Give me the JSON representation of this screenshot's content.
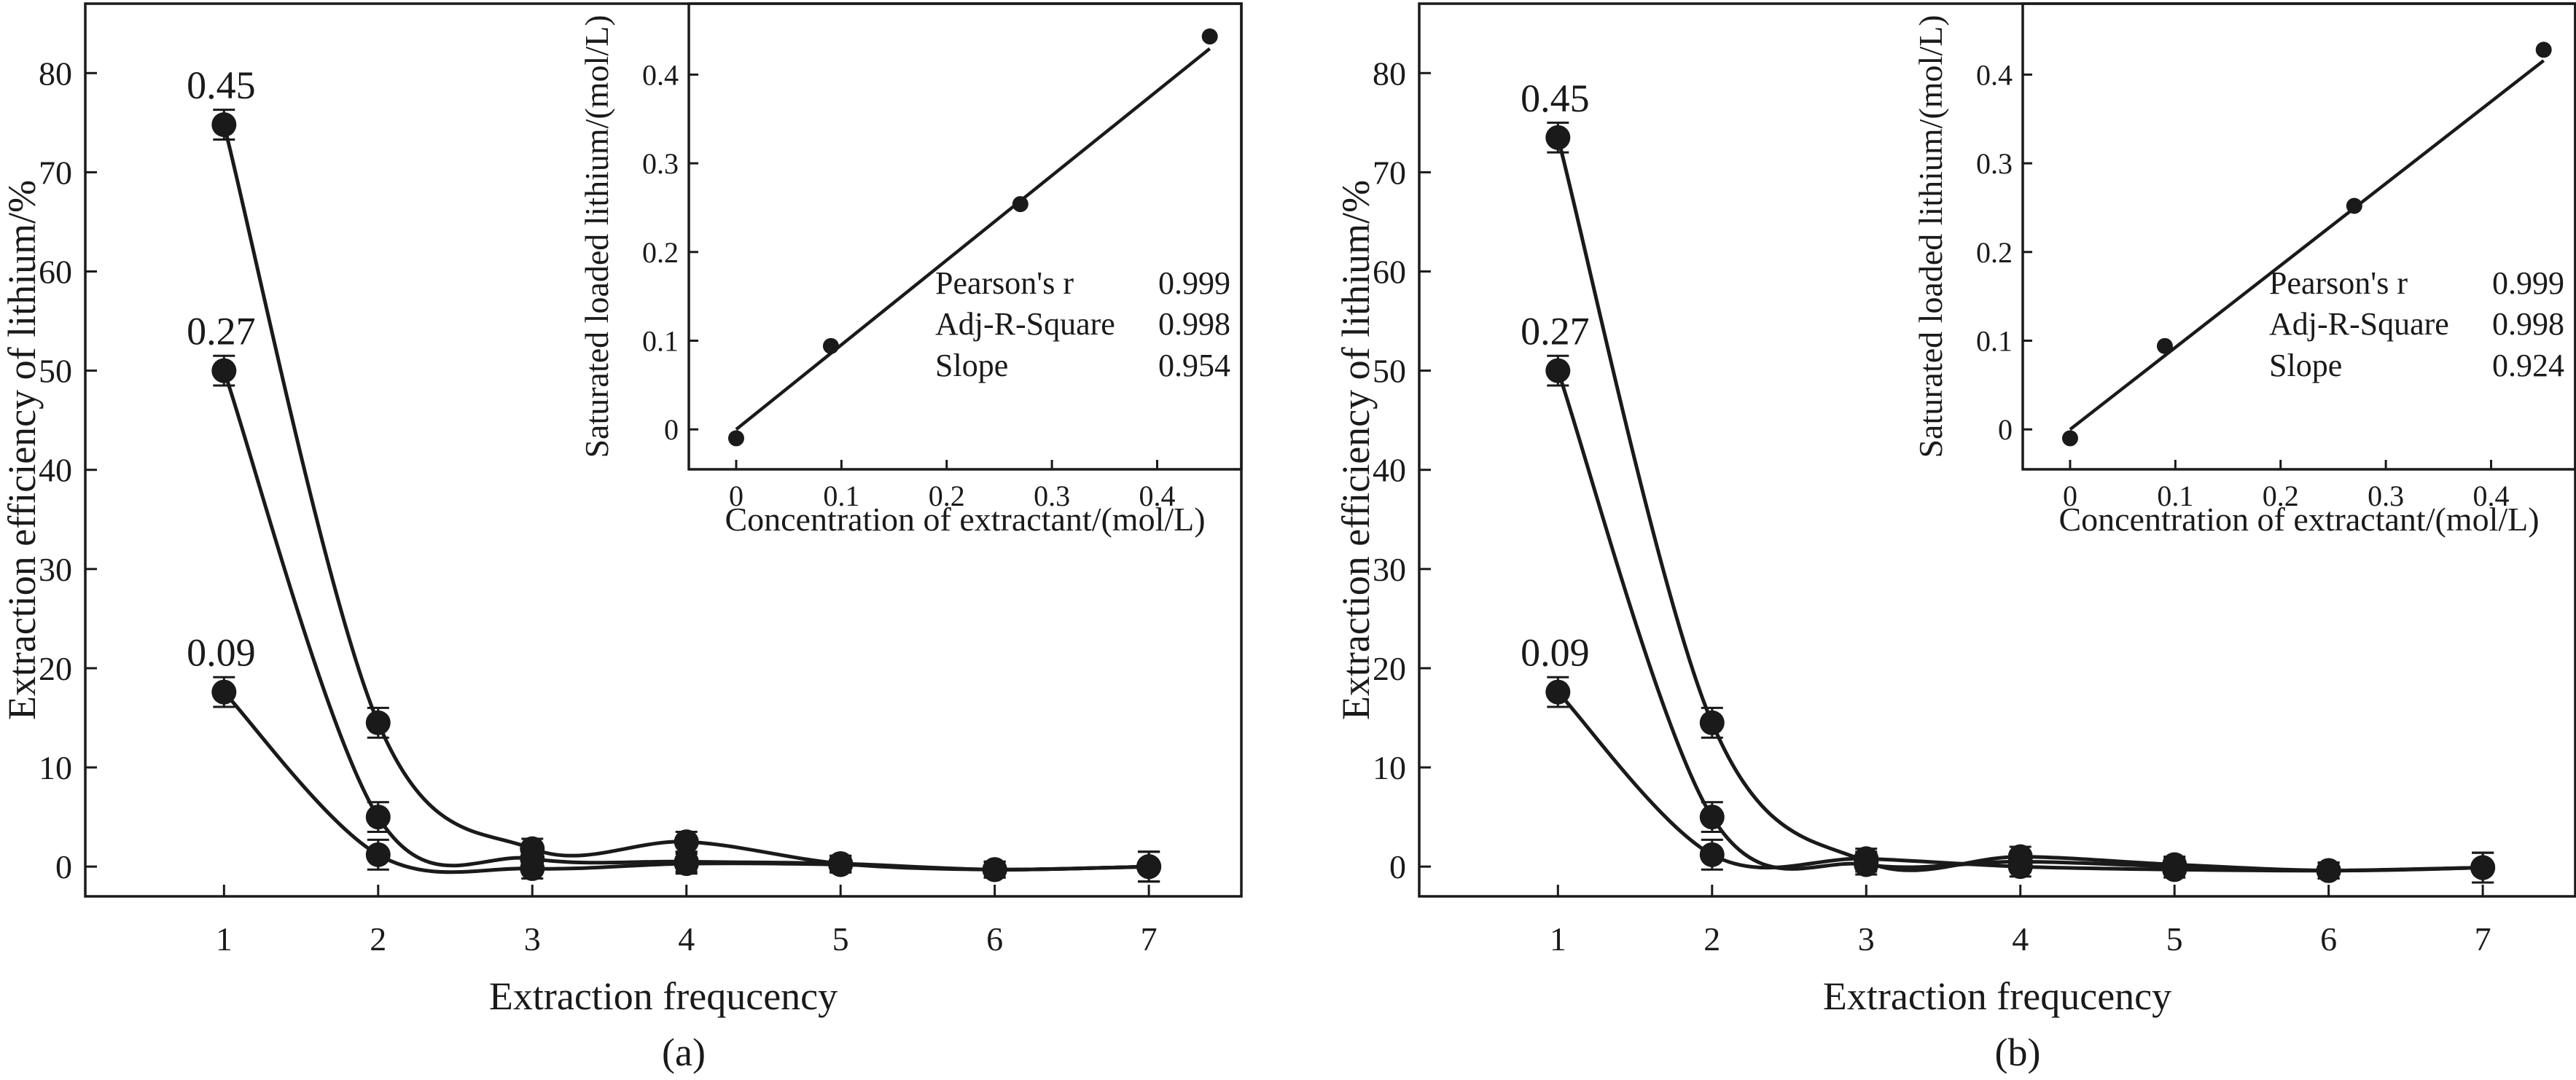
{
  "chart_data": [
    {
      "type": "line",
      "panel_label": "(a)",
      "xlabel": "Extraction frequcency",
      "ylabel": "Extraction efficiency of lithium/%",
      "xlim": [
        0.1,
        7.6
      ],
      "ylim": [
        -3,
        87
      ],
      "xticks": [
        1,
        2,
        3,
        4,
        5,
        6,
        7
      ],
      "yticks": [
        0,
        10,
        20,
        30,
        40,
        50,
        60,
        70,
        80
      ],
      "series": [
        {
          "name": "0.45",
          "x": [
            1,
            2,
            3,
            4,
            5,
            6,
            7
          ],
          "values": [
            74.8,
            14.5,
            1.8,
            2.5,
            0.3,
            -0.3,
            0.0
          ],
          "errors": [
            1.5,
            1.5,
            1.0,
            1.0,
            0.8,
            0.8,
            1.5
          ]
        },
        {
          "name": "0.27",
          "x": [
            1,
            2,
            3,
            4,
            5,
            6,
            7
          ],
          "values": [
            50.0,
            5.0,
            0.8,
            0.5,
            0.3,
            -0.3,
            0.0
          ],
          "errors": [
            1.5,
            1.5,
            1.0,
            1.0,
            0.8,
            0.8,
            1.5
          ]
        },
        {
          "name": "0.09",
          "x": [
            1,
            2,
            3,
            4,
            5,
            6,
            7
          ],
          "values": [
            17.6,
            1.2,
            -0.2,
            0.3,
            0.2,
            -0.3,
            0.0
          ],
          "errors": [
            1.5,
            1.5,
            1.0,
            1.0,
            0.8,
            0.8,
            1.5
          ]
        }
      ],
      "inset": {
        "type": "scatter",
        "xlabel": "Concentration of extractant/(mol/L)",
        "ylabel": "Saturated loaded lithium/(mol/L)",
        "xlim": [
          -0.045,
          0.48
        ],
        "ylim": [
          -0.045,
          0.48
        ],
        "xticks": [
          0,
          0.1,
          0.2,
          0.3,
          0.4
        ],
        "yticks": [
          0,
          0.1,
          0.2,
          0.3,
          0.4
        ],
        "x": [
          0,
          0.09,
          0.27,
          0.45
        ],
        "values": [
          -0.01,
          0.094,
          0.254,
          0.443
        ],
        "fit": {
          "intercept": 0.0,
          "slope": 0.954,
          "x_range": [
            0,
            0.45
          ]
        },
        "stats": [
          {
            "label": "Pearson's r",
            "value": "0.999"
          },
          {
            "label": "Adj-R-Square",
            "value": "0.998"
          },
          {
            "label": "Slope",
            "value": "0.954"
          }
        ]
      }
    },
    {
      "type": "line",
      "panel_label": "(b)",
      "xlabel": "Extraction frequcency",
      "ylabel": "Extraction efficiency of lithium/%",
      "xlim": [
        0.1,
        7.6
      ],
      "ylim": [
        -3,
        87
      ],
      "xticks": [
        1,
        2,
        3,
        4,
        5,
        6,
        7
      ],
      "yticks": [
        0,
        10,
        20,
        30,
        40,
        50,
        60,
        70,
        80
      ],
      "series": [
        {
          "name": "0.45",
          "x": [
            1,
            2,
            3,
            4,
            5,
            6,
            7
          ],
          "values": [
            73.5,
            14.5,
            0.5,
            1.0,
            0.2,
            -0.4,
            -0.1
          ],
          "errors": [
            1.5,
            1.5,
            1.0,
            1.0,
            0.8,
            0.8,
            1.5
          ]
        },
        {
          "name": "0.27",
          "x": [
            1,
            2,
            3,
            4,
            5,
            6,
            7
          ],
          "values": [
            50.0,
            5.0,
            0.2,
            0.5,
            0.0,
            -0.4,
            -0.1
          ],
          "errors": [
            1.5,
            1.5,
            1.0,
            1.0,
            0.8,
            0.8,
            1.5
          ]
        },
        {
          "name": "0.09",
          "x": [
            1,
            2,
            3,
            4,
            5,
            6,
            7
          ],
          "values": [
            17.6,
            1.2,
            0.8,
            0.0,
            -0.3,
            -0.4,
            -0.1
          ],
          "errors": [
            1.5,
            1.5,
            1.0,
            1.0,
            0.8,
            0.8,
            1.5
          ]
        }
      ],
      "inset": {
        "type": "scatter",
        "xlabel": "Concentration of extractant/(mol/L)",
        "ylabel": "Saturated loaded lithium/(mol/L)",
        "xlim": [
          -0.045,
          0.48
        ],
        "ylim": [
          -0.045,
          0.48
        ],
        "xticks": [
          0,
          0.1,
          0.2,
          0.3,
          0.4
        ],
        "yticks": [
          0,
          0.1,
          0.2,
          0.3,
          0.4
        ],
        "x": [
          0,
          0.09,
          0.27,
          0.45
        ],
        "values": [
          -0.01,
          0.094,
          0.252,
          0.428
        ],
        "fit": {
          "intercept": 0.0,
          "slope": 0.924,
          "x_range": [
            0,
            0.45
          ]
        },
        "stats": [
          {
            "label": "Pearson's r",
            "value": "0.999"
          },
          {
            "label": "Adj-R-Square",
            "value": "0.998"
          },
          {
            "label": "Slope",
            "value": "0.924"
          }
        ]
      }
    }
  ]
}
